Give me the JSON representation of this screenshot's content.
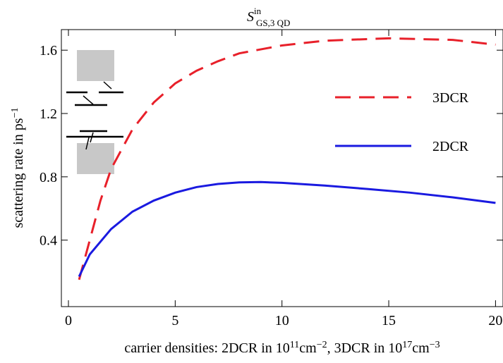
{
  "chart_data": {
    "type": "line",
    "title": [
      "S",
      "in",
      "GS,3 QD"
    ],
    "y_label": [
      "scattering rate in ps",
      "−1"
    ],
    "x_label": [
      "carrier densities: 2DCR in 10",
      "11",
      "cm",
      "−2",
      ", 3DCR in 10",
      "17",
      "cm",
      "−3"
    ],
    "xlim": [
      -0.33,
      20.35
    ],
    "xticks": [
      0,
      5,
      10,
      15,
      20
    ],
    "ylim": [
      -0.02,
      1.73
    ],
    "yticks": [
      {
        "value": 0.4,
        "label": "0.4"
      },
      {
        "value": 0.8,
        "label": "0.8"
      },
      {
        "value": 1.2,
        "label": "1.2"
      },
      {
        "value": 1.6,
        "label": "1.6"
      }
    ],
    "legend": "right",
    "series": [
      {
        "name": "3DCR",
        "color": "#e8202a",
        "dashed": true,
        "x": [
          0.5,
          1,
          1.5,
          2,
          3,
          4,
          5,
          6,
          7,
          8,
          10,
          12,
          15,
          18,
          20
        ],
        "values": [
          0.15,
          0.4,
          0.65,
          0.85,
          1.1,
          1.27,
          1.39,
          1.47,
          1.53,
          1.58,
          1.63,
          1.66,
          1.675,
          1.665,
          1.635
        ]
      },
      {
        "name": "2DCR",
        "color": "#1a1ae0",
        "dashed": false,
        "x": [
          0.5,
          1,
          2,
          3,
          4,
          5,
          6,
          7,
          8,
          9,
          10,
          12,
          14,
          16,
          18,
          20
        ],
        "values": [
          0.17,
          0.31,
          0.47,
          0.58,
          0.65,
          0.7,
          0.735,
          0.755,
          0.765,
          0.767,
          0.762,
          0.745,
          0.723,
          0.7,
          0.67,
          0.635
        ]
      }
    ]
  }
}
